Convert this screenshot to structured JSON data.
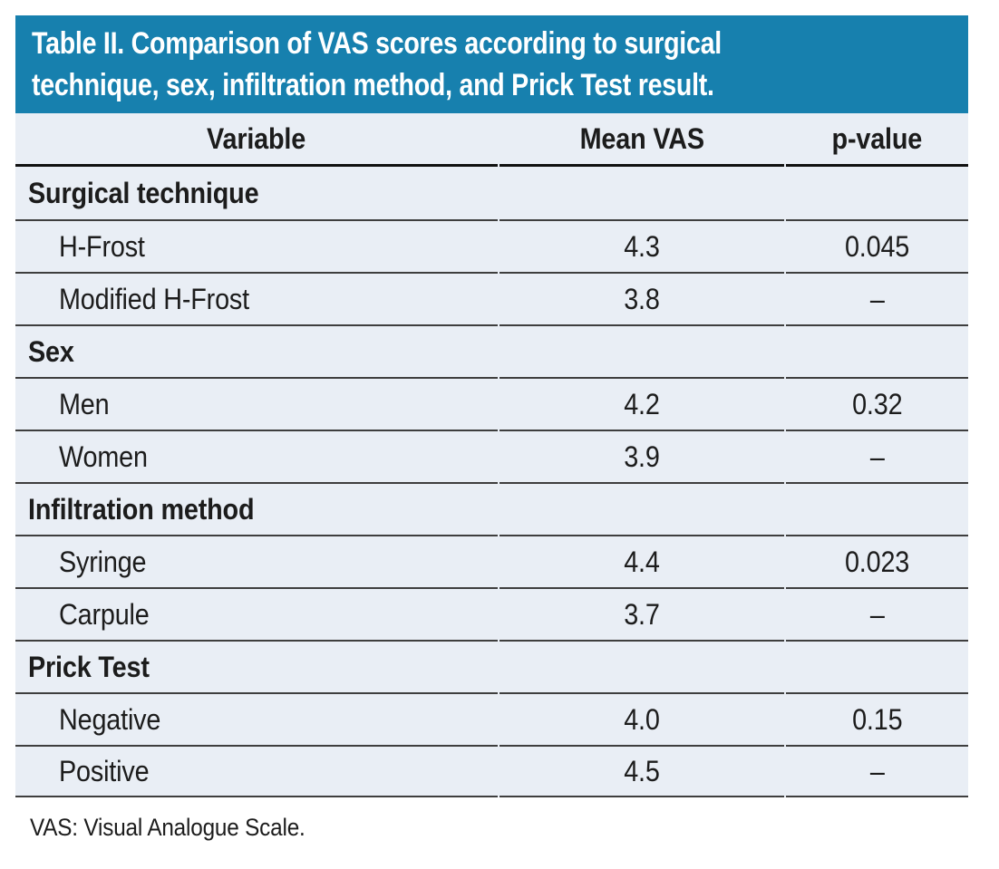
{
  "table": {
    "title": "Table II. Comparison of VAS scores according to surgical technique, sex, infiltration method, and Prick Test result.",
    "title_lines": [
      "Table II. Comparison of VAS scores according to surgical",
      "technique, sex, infiltration method, and Prick Test result."
    ],
    "columns": [
      "Variable",
      "Mean VAS",
      "p-value"
    ],
    "sections": [
      {
        "label": "Surgical technique",
        "rows": [
          {
            "variable": "H-Frost",
            "mean_vas": "4.3",
            "p_value": "0.045"
          },
          {
            "variable": "Modified H-Frost",
            "mean_vas": "3.8",
            "p_value": "–"
          }
        ]
      },
      {
        "label": "Sex",
        "rows": [
          {
            "variable": "Men",
            "mean_vas": "4.2",
            "p_value": "0.32"
          },
          {
            "variable": "Women",
            "mean_vas": "3.9",
            "p_value": "–"
          }
        ]
      },
      {
        "label": "Infiltration method",
        "rows": [
          {
            "variable": "Syringe",
            "mean_vas": "4.4",
            "p_value": "0.023"
          },
          {
            "variable": "Carpule",
            "mean_vas": "3.7",
            "p_value": "–"
          }
        ]
      },
      {
        "label": "Prick Test",
        "rows": [
          {
            "variable": "Negative",
            "mean_vas": "4.0",
            "p_value": "0.15"
          },
          {
            "variable": "Positive",
            "mean_vas": "4.5",
            "p_value": "–"
          }
        ]
      }
    ],
    "footnote": "VAS: Visual Analogue Scale.",
    "colors": {
      "banner_blue": "#1780AE",
      "row_background": "#E9EEF5",
      "rule_dark": "#101010",
      "rule": "#3E3E3E",
      "title_text": "#FFFFFF",
      "body_text": "#1C1C1C"
    }
  }
}
